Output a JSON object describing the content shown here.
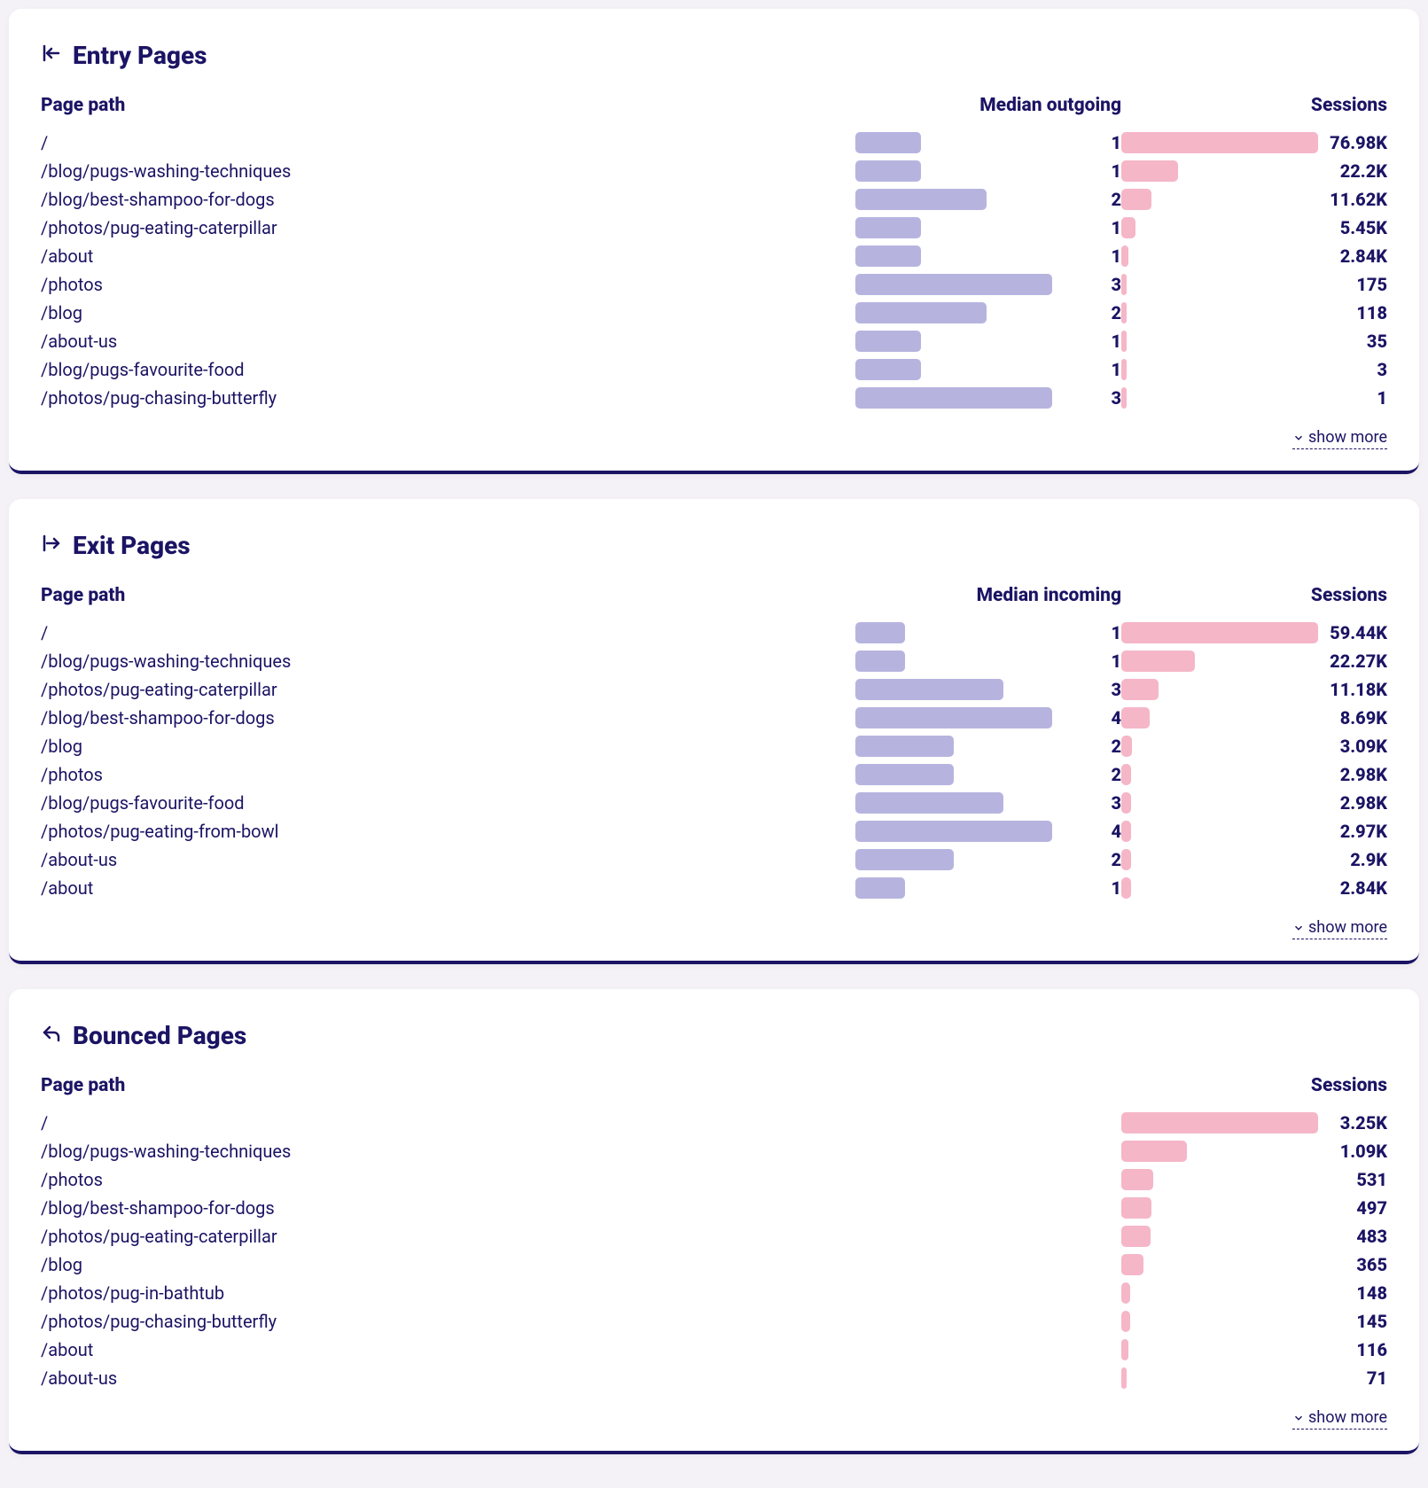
{
  "colors": {
    "text": "#1b1464",
    "panel_bg": "#ffffff",
    "page_bg": "#f4f2f7",
    "border_bottom": "#1b1464",
    "median_bar": "#b6b4df",
    "sessions_bar": "#f5b6c8"
  },
  "panels": {
    "entry": {
      "title": "Entry Pages",
      "icon": "entry-icon",
      "columns": {
        "path": "Page path",
        "median": "Median outgoing",
        "sessions": "Sessions"
      },
      "median_max": 3,
      "sessions_max": 76980,
      "rows": [
        {
          "path": "/",
          "median": 1,
          "median_label": "1",
          "sessions": 76980,
          "sessions_label": "76.98K"
        },
        {
          "path": "/blog/pugs-washing-techniques",
          "median": 1,
          "median_label": "1",
          "sessions": 22200,
          "sessions_label": "22.2K"
        },
        {
          "path": "/blog/best-shampoo-for-dogs",
          "median": 2,
          "median_label": "2",
          "sessions": 11620,
          "sessions_label": "11.62K"
        },
        {
          "path": "/photos/pug-eating-caterpillar",
          "median": 1,
          "median_label": "1",
          "sessions": 5450,
          "sessions_label": "5.45K"
        },
        {
          "path": "/about",
          "median": 1,
          "median_label": "1",
          "sessions": 2840,
          "sessions_label": "2.84K"
        },
        {
          "path": "/photos",
          "median": 3,
          "median_label": "3",
          "sessions": 175,
          "sessions_label": "175"
        },
        {
          "path": "/blog",
          "median": 2,
          "median_label": "2",
          "sessions": 118,
          "sessions_label": "118"
        },
        {
          "path": "/about-us",
          "median": 1,
          "median_label": "1",
          "sessions": 35,
          "sessions_label": "35"
        },
        {
          "path": "/blog/pugs-favourite-food",
          "median": 1,
          "median_label": "1",
          "sessions": 3,
          "sessions_label": "3"
        },
        {
          "path": "/photos/pug-chasing-butterfly",
          "median": 3,
          "median_label": "3",
          "sessions": 1,
          "sessions_label": "1"
        }
      ],
      "show_more": "show more"
    },
    "exit": {
      "title": "Exit Pages",
      "icon": "exit-icon",
      "columns": {
        "path": "Page path",
        "median": "Median incoming",
        "sessions": "Sessions"
      },
      "median_max": 4,
      "sessions_max": 59440,
      "rows": [
        {
          "path": "/",
          "median": 1,
          "median_label": "1",
          "sessions": 59440,
          "sessions_label": "59.44K"
        },
        {
          "path": "/blog/pugs-washing-techniques",
          "median": 1,
          "median_label": "1",
          "sessions": 22270,
          "sessions_label": "22.27K"
        },
        {
          "path": "/photos/pug-eating-caterpillar",
          "median": 3,
          "median_label": "3",
          "sessions": 11180,
          "sessions_label": "11.18K"
        },
        {
          "path": "/blog/best-shampoo-for-dogs",
          "median": 4,
          "median_label": "4",
          "sessions": 8690,
          "sessions_label": "8.69K"
        },
        {
          "path": "/blog",
          "median": 2,
          "median_label": "2",
          "sessions": 3090,
          "sessions_label": "3.09K"
        },
        {
          "path": "/photos",
          "median": 2,
          "median_label": "2",
          "sessions": 2980,
          "sessions_label": "2.98K"
        },
        {
          "path": "/blog/pugs-favourite-food",
          "median": 3,
          "median_label": "3",
          "sessions": 2980,
          "sessions_label": "2.98K"
        },
        {
          "path": "/photos/pug-eating-from-bowl",
          "median": 4,
          "median_label": "4",
          "sessions": 2970,
          "sessions_label": "2.97K"
        },
        {
          "path": "/about-us",
          "median": 2,
          "median_label": "2",
          "sessions": 2900,
          "sessions_label": "2.9K"
        },
        {
          "path": "/about",
          "median": 1,
          "median_label": "1",
          "sessions": 2840,
          "sessions_label": "2.84K"
        }
      ],
      "show_more": "show more"
    },
    "bounced": {
      "title": "Bounced Pages",
      "icon": "bounced-icon",
      "columns": {
        "path": "Page path",
        "sessions": "Sessions"
      },
      "sessions_max": 3250,
      "rows": [
        {
          "path": "/",
          "sessions": 3250,
          "sessions_label": "3.25K"
        },
        {
          "path": "/blog/pugs-washing-techniques",
          "sessions": 1090,
          "sessions_label": "1.09K"
        },
        {
          "path": "/photos",
          "sessions": 531,
          "sessions_label": "531"
        },
        {
          "path": "/blog/best-shampoo-for-dogs",
          "sessions": 497,
          "sessions_label": "497"
        },
        {
          "path": "/photos/pug-eating-caterpillar",
          "sessions": 483,
          "sessions_label": "483"
        },
        {
          "path": "/blog",
          "sessions": 365,
          "sessions_label": "365"
        },
        {
          "path": "/photos/pug-in-bathtub",
          "sessions": 148,
          "sessions_label": "148"
        },
        {
          "path": "/photos/pug-chasing-butterfly",
          "sessions": 145,
          "sessions_label": "145"
        },
        {
          "path": "/about",
          "sessions": 116,
          "sessions_label": "116"
        },
        {
          "path": "/about-us",
          "sessions": 71,
          "sessions_label": "71"
        }
      ],
      "show_more": "show more"
    }
  }
}
